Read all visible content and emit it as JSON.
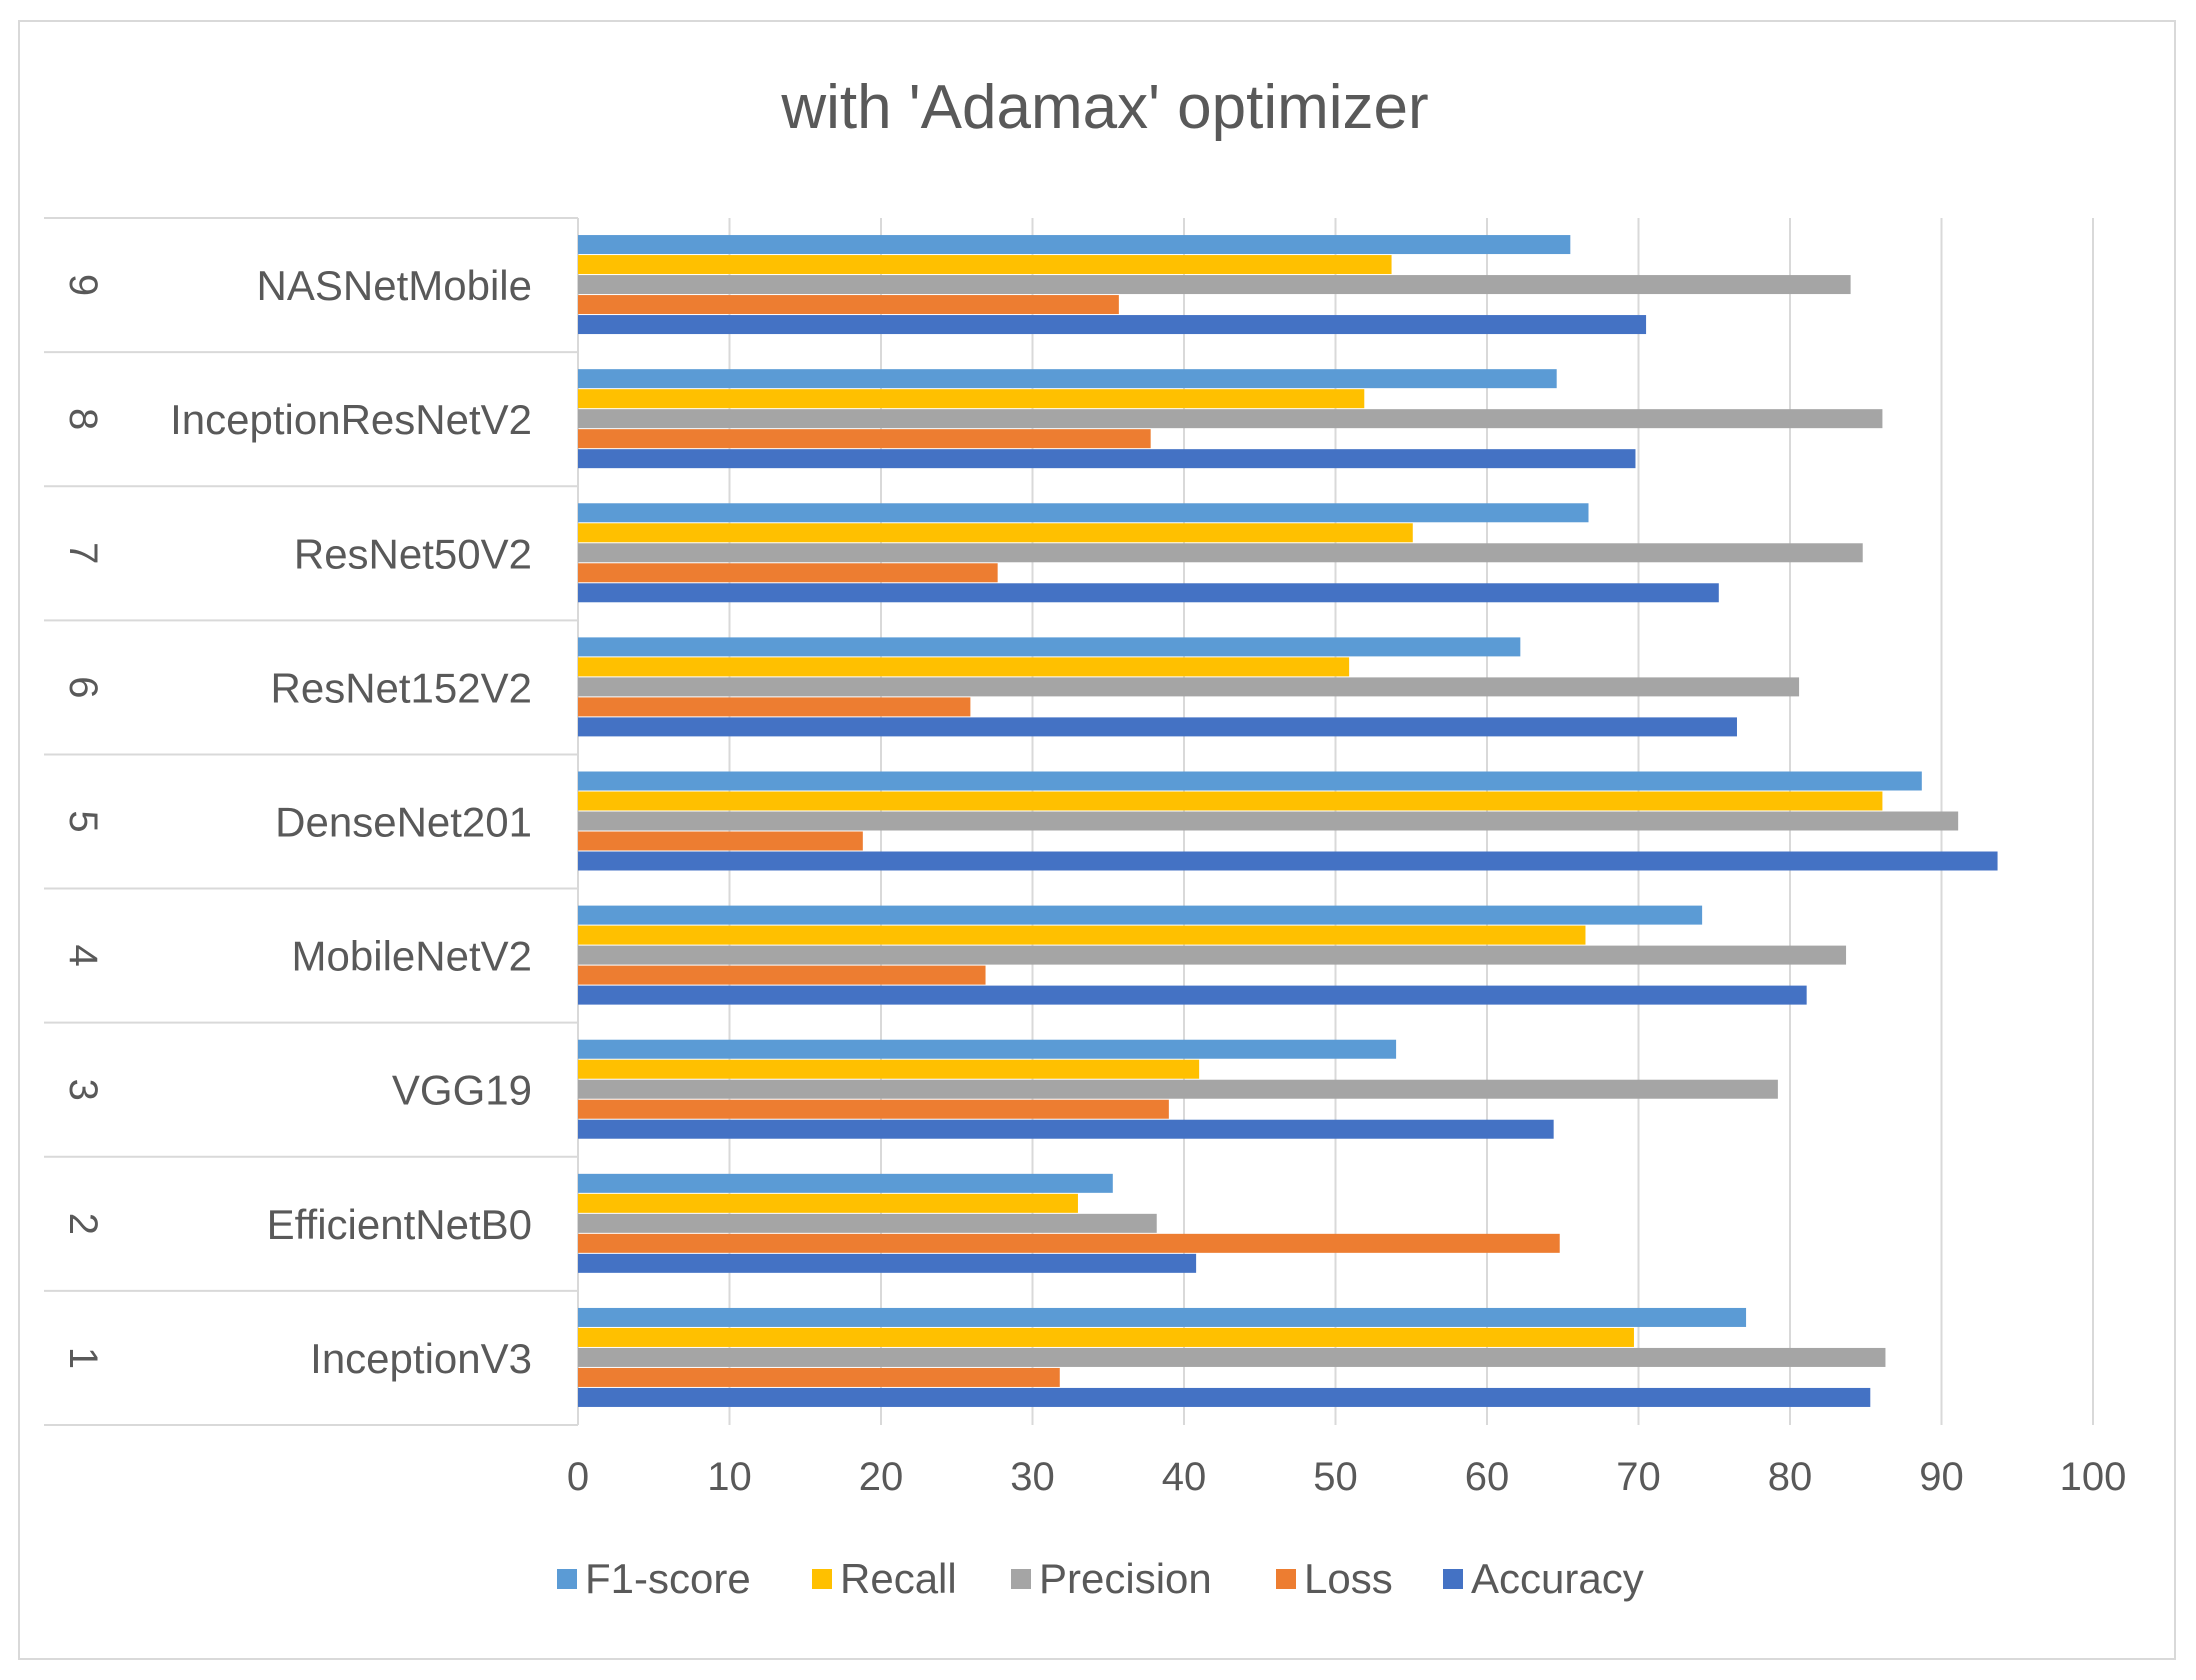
{
  "chart_data": {
    "type": "bar",
    "orientation": "horizontal",
    "title": "with 'Adamax' optimizer",
    "xlabel": "",
    "ylabel": "",
    "xlim": [
      0,
      100
    ],
    "x_ticks": [
      "0",
      "10",
      "20",
      "30",
      "40",
      "50",
      "60",
      "70",
      "80",
      "90",
      "100"
    ],
    "grid": true,
    "legend_position": "bottom",
    "categories": [
      {
        "index": "1",
        "name": "InceptionV3"
      },
      {
        "index": "2",
        "name": "EfficientNetB0"
      },
      {
        "index": "3",
        "name": "VGG19"
      },
      {
        "index": "4",
        "name": "MobileNetV2"
      },
      {
        "index": "5",
        "name": "DenseNet201"
      },
      {
        "index": "6",
        "name": "ResNet152V2"
      },
      {
        "index": "7",
        "name": "ResNet50V2"
      },
      {
        "index": "8",
        "name": "InceptionResNetV2"
      },
      {
        "index": "9",
        "name": "NASNetMobile"
      }
    ],
    "series": [
      {
        "name": "F1-score",
        "color": "#5B9BD5",
        "values": [
          77.1,
          35.3,
          54,
          74.2,
          88.7,
          62.2,
          66.7,
          64.6,
          65.5
        ]
      },
      {
        "name": "Recall",
        "color": "#FFC000",
        "values": [
          69.7,
          33,
          41,
          66.5,
          86.1,
          50.9,
          55.1,
          51.9,
          53.7
        ]
      },
      {
        "name": "Precision",
        "color": "#A5A5A5",
        "values": [
          86.3,
          38.2,
          79.2,
          83.7,
          91.1,
          80.6,
          84.8,
          86.1,
          84
        ]
      },
      {
        "name": "Loss",
        "color": "#ED7D31",
        "values": [
          31.8,
          64.8,
          39,
          26.9,
          18.8,
          25.9,
          27.7,
          37.8,
          35.7
        ]
      },
      {
        "name": "Accuracy",
        "color": "#4472C4",
        "values": [
          85.3,
          40.8,
          64.4,
          81.1,
          93.7,
          76.5,
          75.3,
          69.8,
          70.5
        ]
      }
    ]
  }
}
